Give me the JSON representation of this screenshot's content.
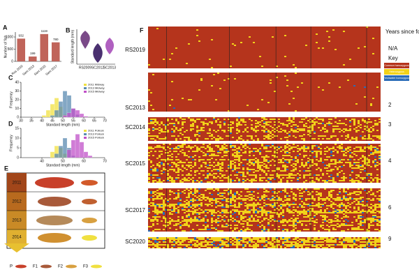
{
  "chart_data": [
    {
      "type": "bar",
      "panel": "A",
      "ylabel": "Number of fish",
      "categories": [
        "Rus 2019",
        "Sant 2013",
        "Sant 2015",
        "Sant 2017"
      ],
      "values": [
        932,
        199,
        1119,
        780
      ],
      "color": "#c0645a",
      "ylim": [
        0,
        1200
      ],
      "yticks": [
        0,
        500,
        1000
      ]
    },
    {
      "type": "histogram",
      "panel": "C",
      "xlabel": "Standard length (mm)",
      "ylabel": "Frequency",
      "bins": [
        30,
        32,
        34,
        36,
        38,
        40,
        42,
        44,
        46,
        48,
        50,
        52,
        54,
        56,
        58,
        60,
        62,
        64,
        66,
        68,
        70
      ],
      "series": [
        {
          "name": "2011 Midway",
          "color": "#f0e040",
          "values": [
            0,
            0,
            0,
            0,
            0,
            2,
            8,
            15,
            22,
            12,
            3,
            0,
            0,
            0,
            0,
            0,
            0,
            0,
            0,
            0
          ]
        },
        {
          "name": "2013 Midway",
          "color": "#5a8ab0",
          "values": [
            0,
            0,
            0,
            0,
            0,
            0,
            0,
            2,
            8,
            18,
            30,
            25,
            10,
            3,
            0,
            0,
            0,
            0,
            0,
            0
          ]
        },
        {
          "name": "2015 Midway",
          "color": "#c050c8",
          "values": [
            0,
            0,
            0,
            0,
            0,
            0,
            0,
            0,
            0,
            0,
            2,
            5,
            10,
            8,
            4,
            1,
            0,
            0,
            0,
            0
          ]
        }
      ],
      "xlim": [
        30,
        70
      ],
      "xticks": [
        30,
        35,
        40,
        45,
        50,
        55,
        60,
        65,
        70
      ],
      "ylim": [
        0,
        40
      ],
      "yticks": [
        0,
        10,
        20,
        30,
        40
      ]
    },
    {
      "type": "histogram",
      "panel": "D",
      "xlabel": "Standard length (mm)",
      "ylabel": "Frequency",
      "bins": [
        30,
        32,
        34,
        36,
        38,
        40,
        42,
        44,
        46,
        48,
        50,
        52,
        54,
        56,
        58,
        60,
        62,
        64,
        66,
        68,
        70
      ],
      "series": [
        {
          "name": "2011 Pollock",
          "color": "#f0e040",
          "values": [
            0,
            0,
            0,
            0,
            0,
            0,
            0,
            3,
            6,
            5,
            2,
            0,
            0,
            0,
            0,
            0,
            0,
            0,
            0,
            0
          ]
        },
        {
          "name": "2013 Pollock",
          "color": "#5a8ab0",
          "values": [
            0,
            0,
            0,
            0,
            0,
            0,
            0,
            0,
            2,
            6,
            10,
            5,
            1,
            0,
            0,
            0,
            0,
            0,
            0,
            0
          ]
        },
        {
          "name": "2015 Pollock",
          "color": "#c050c8",
          "values": [
            0,
            0,
            0,
            0,
            0,
            0,
            0,
            0,
            0,
            0,
            0,
            4,
            9,
            12,
            8,
            3,
            1,
            0,
            0,
            0
          ]
        }
      ],
      "xlim": [
        30,
        70
      ],
      "xticks": [
        40,
        50,
        60,
        70
      ],
      "ylim": [
        0,
        15
      ],
      "yticks": [
        0,
        5,
        10,
        15
      ]
    }
  ],
  "panel_b": {
    "label": "B",
    "ylabel": "Standard length (mm)",
    "categories": [
      "RS2009",
      "SC2012",
      "SC2013"
    ]
  },
  "panel_e": {
    "label": "E",
    "years": [
      "2011",
      "2012",
      "2013",
      "2014"
    ],
    "generations": [
      "P",
      "F1",
      "F2",
      "F3"
    ]
  },
  "panel_f": {
    "label": "F",
    "header": "Years since founding",
    "na": "N/A",
    "key": {
      "title": "Key",
      "items": [
        {
          "name": "Common homozygous",
          "color": "#b5341c"
        },
        {
          "name": "Heterozygous",
          "color": "#f2d21a"
        },
        {
          "name": "Freshwater homozygous",
          "color": "#2a6cb8"
        }
      ]
    },
    "rows": [
      {
        "label": "RS2019",
        "years": null
      },
      {
        "label": "SC2013",
        "years": "2"
      },
      {
        "label": "SC2014",
        "years": "3"
      },
      {
        "label": "SC2015",
        "years": "4"
      },
      {
        "label": "SC2017",
        "years": "6"
      },
      {
        "label": "SC2020",
        "years": "9"
      }
    ]
  }
}
